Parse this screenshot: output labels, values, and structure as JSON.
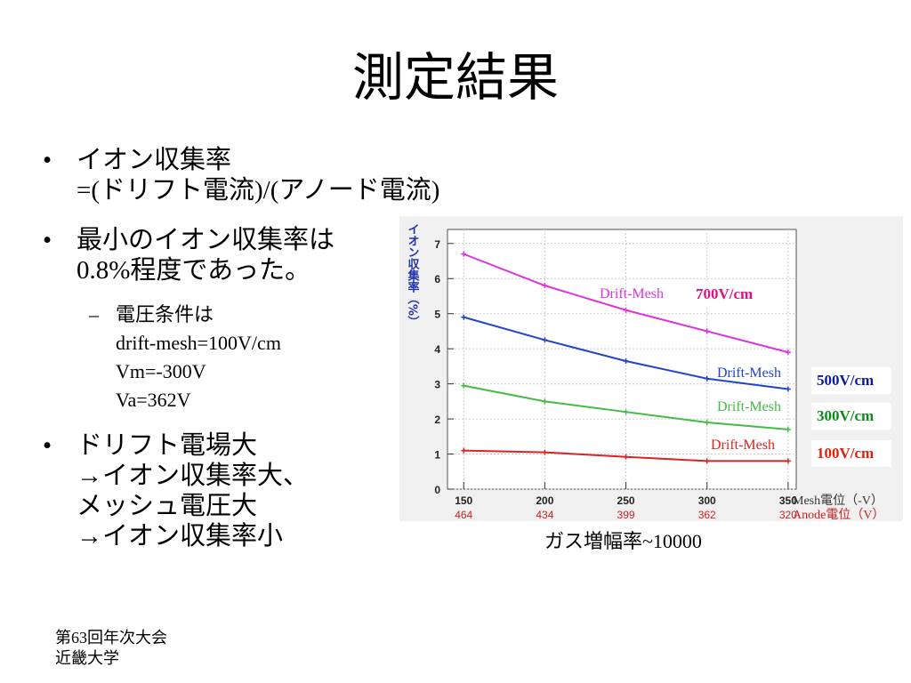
{
  "slide": {
    "title": "測定結果",
    "bullets": [
      {
        "lines": [
          "イオン収集率",
          "=(ドリフト電流)/(アノード電流)"
        ]
      },
      {
        "lines": [
          "最小のイオン収集率は",
          "0.8%程度であった。"
        ]
      },
      {
        "lines": [
          "ドリフト電場大",
          "→イオン収集率大、",
          "メッシュ電圧大",
          "→イオン収集率小"
        ]
      }
    ],
    "sub_bullet": {
      "lines": [
        "電圧条件は",
        "drift-mesh=100V/cm",
        "Vm=-300V",
        "Va=362V"
      ]
    },
    "bullet_symbol": "•",
    "dash_symbol": "–",
    "footer": [
      "第63回年次大会",
      "近畿大学"
    ],
    "chart_caption": "ガス増幅率~10000"
  },
  "chart_data": {
    "type": "line",
    "ylabel": "イオン収集率（%）",
    "x": [
      150,
      200,
      250,
      300,
      350
    ],
    "x_tick_labels": [
      "150",
      "200",
      "250",
      "300",
      "350"
    ],
    "x2_tick_labels": [
      "464",
      "434",
      "399",
      "362",
      "320"
    ],
    "xlabel": "Mesh電位（-V）",
    "x2label": "Anode電位（V）",
    "xlim": [
      140,
      355
    ],
    "ylim": [
      0,
      7.4
    ],
    "y_ticks": [
      0,
      1,
      2,
      3,
      4,
      5,
      6,
      7
    ],
    "grid": true,
    "series": [
      {
        "label": "Drift-Mesh",
        "tag": "700V/cm",
        "color": "#dd33dd",
        "tag_color": "#e0108a",
        "values": [
          6.7,
          5.8,
          5.1,
          4.5,
          3.9
        ]
      },
      {
        "label": "Drift-Mesh",
        "tag": "500V/cm",
        "color": "#2244cc",
        "tag_color": "#0a1aa0",
        "values": [
          4.9,
          4.25,
          3.65,
          3.15,
          2.85
        ]
      },
      {
        "label": "Drift-Mesh",
        "tag": "300V/cm",
        "color": "#44bb44",
        "tag_color": "#0a8a1a",
        "values": [
          2.95,
          2.5,
          2.2,
          1.9,
          1.7
        ]
      },
      {
        "label": "Drift-Mesh",
        "tag": "100V/cm",
        "color": "#dd2222",
        "tag_color": "#e0200a",
        "values": [
          1.1,
          1.05,
          0.92,
          0.8,
          0.8
        ]
      }
    ]
  }
}
